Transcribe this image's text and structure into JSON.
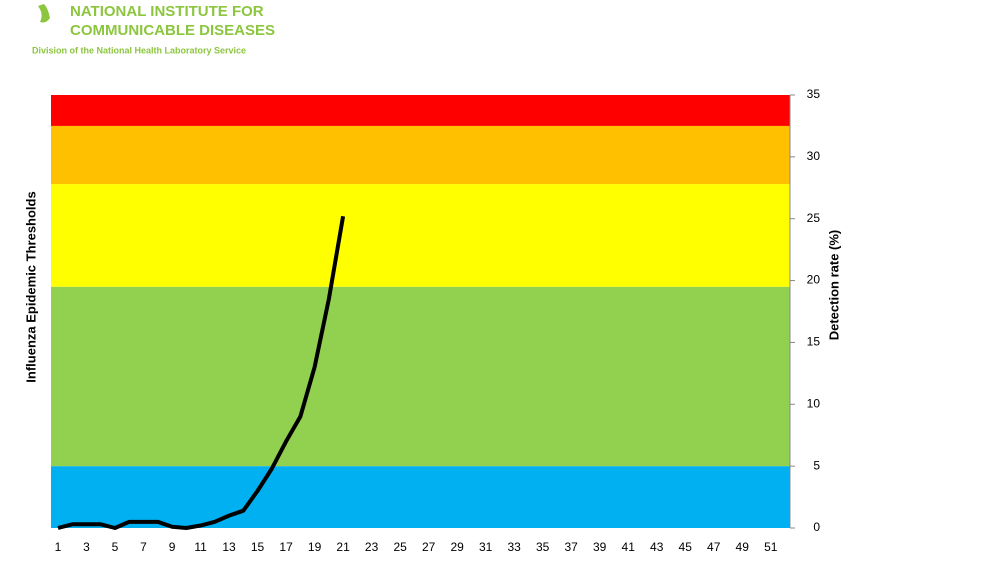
{
  "header": {
    "org_line1": "NATIONAL INSTITUTE FOR",
    "org_line2": "COMMUNICABLE DISEASES",
    "org_sub": "Division of the National Health Laboratory Service"
  },
  "chart_data": {
    "type": "line",
    "ylabel_left": "Influenza Epidemic Thresholds",
    "ylabel": "Detection rate (%)",
    "categories": [
      1,
      null,
      3,
      null,
      5,
      null,
      7,
      null,
      9,
      null,
      11,
      null,
      13,
      null,
      15,
      null,
      17,
      null,
      19,
      null,
      21,
      null,
      23,
      null,
      25,
      null,
      27,
      null,
      29,
      null,
      31,
      null,
      33,
      null,
      35,
      null,
      37,
      null,
      39,
      null,
      41,
      null,
      43,
      null,
      45,
      null,
      47,
      null,
      49,
      null,
      51,
      null
    ],
    "series": [
      {
        "color": "#000000",
        "values": [
          0,
          0.3,
          0.3,
          0.3,
          0,
          0.5,
          0.5,
          0.5,
          0.1,
          0,
          0.2,
          0.5,
          1,
          1.4,
          3,
          4.8,
          7,
          9,
          13,
          18.5,
          25.2,
          null,
          null,
          null,
          null,
          null,
          null,
          null,
          null,
          null,
          null,
          null,
          null,
          null,
          null,
          null,
          null,
          null,
          null,
          null,
          null,
          null,
          null,
          null,
          null,
          null,
          null,
          null,
          null,
          null,
          null,
          null
        ]
      }
    ],
    "bands": [
      {
        "from": 0,
        "to": 5,
        "color": "#00b0f0"
      },
      {
        "from": 5,
        "to": 19.5,
        "color": "#92d050"
      },
      {
        "from": 19.5,
        "to": 27.8,
        "color": "#ffff00"
      },
      {
        "from": 27.8,
        "to": 32.5,
        "color": "#ffc000"
      },
      {
        "from": 32.5,
        "to": 35,
        "color": "#ff0000"
      }
    ],
    "ylim": [
      0,
      35
    ],
    "yticks": [
      0,
      5,
      10,
      15,
      20,
      25,
      30,
      35
    ],
    "y_axis_side": "right"
  }
}
